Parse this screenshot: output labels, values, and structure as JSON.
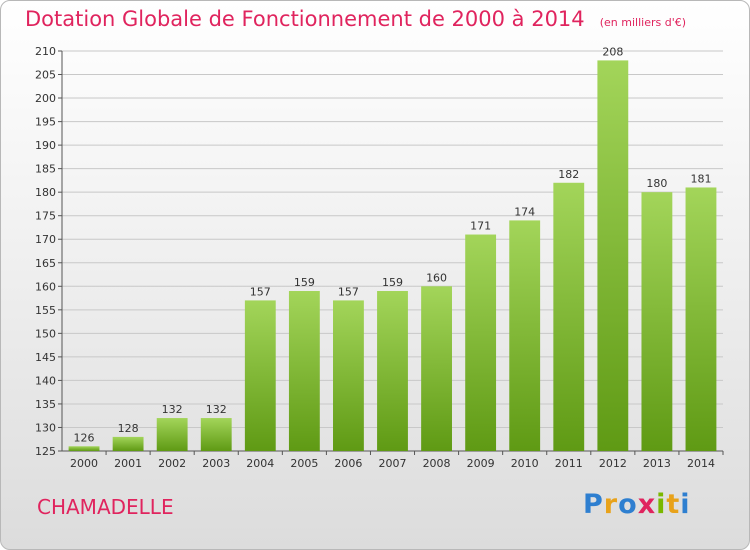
{
  "header": {
    "title": "Dotation Globale de Fonctionnement de 2000 à 2014",
    "subtitle": "(en milliers d'€)"
  },
  "footer": {
    "commune": "CHAMADELLE",
    "logo": {
      "letters": [
        "P",
        "r",
        "o",
        "x",
        "i",
        "t",
        "i"
      ],
      "colors": [
        "#2e7fd0",
        "#e8a21a",
        "#2e7fd0",
        "#e0245e",
        "#7ab800",
        "#e8a21a",
        "#2e7fd0"
      ]
    }
  },
  "colors": {
    "bar_light": "#a3d55a",
    "bar_dark": "#5f9a14",
    "grid": "#c8c8c8",
    "accent": "#e0245e"
  },
  "chart_data": {
    "type": "bar",
    "categories": [
      "2000",
      "2001",
      "2002",
      "2003",
      "2004",
      "2005",
      "2006",
      "2007",
      "2008",
      "2009",
      "2010",
      "2011",
      "2012",
      "2013",
      "2014"
    ],
    "values": [
      126,
      128,
      132,
      132,
      157,
      159,
      157,
      159,
      160,
      171,
      174,
      182,
      208,
      180,
      181
    ],
    "yticks": [
      125,
      130,
      135,
      140,
      145,
      150,
      155,
      160,
      165,
      170,
      175,
      180,
      185,
      190,
      195,
      200,
      205,
      210
    ],
    "ylim": [
      125,
      210
    ],
    "grid": true,
    "title": "Dotation Globale de Fonctionnement de 2000 à 2014",
    "subtitle": "(en milliers d'€)"
  }
}
